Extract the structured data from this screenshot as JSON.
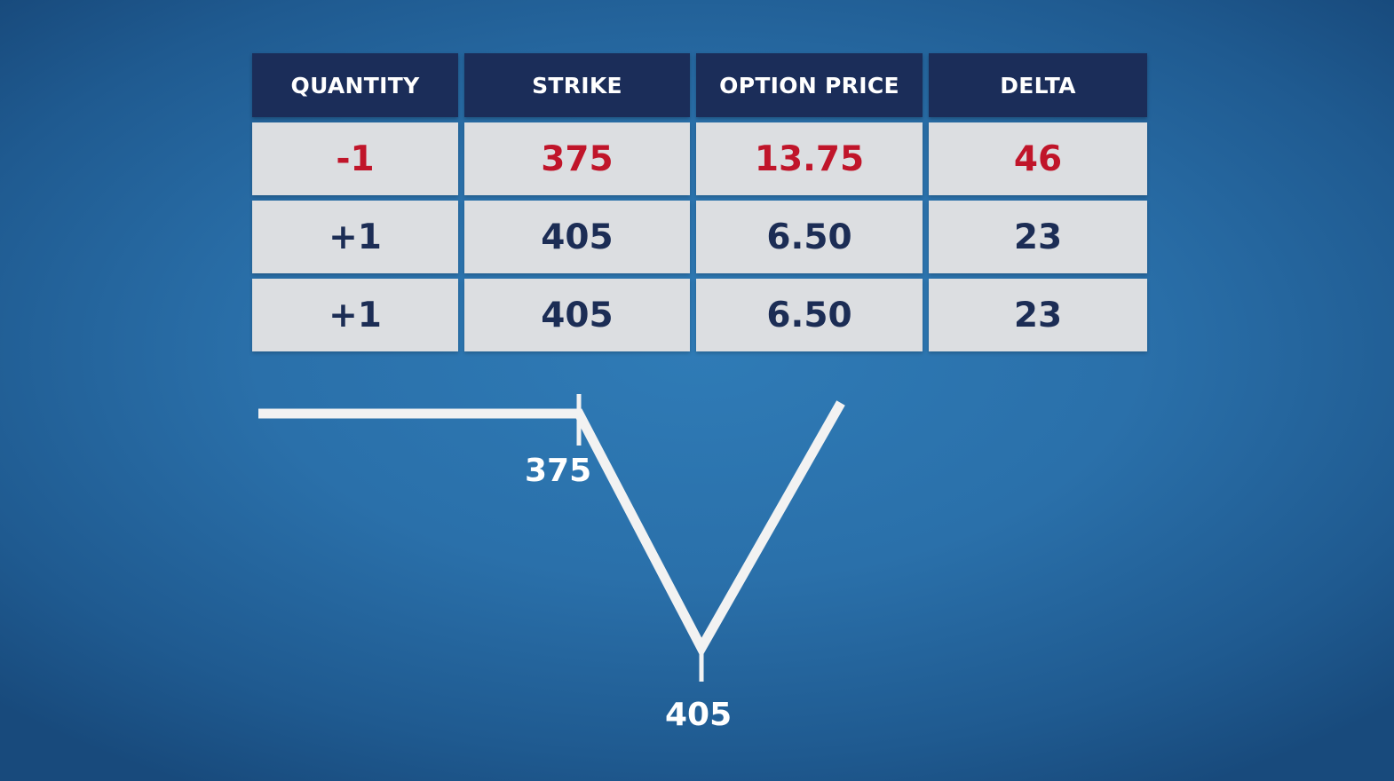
{
  "table": {
    "headers": [
      "QUANTITY",
      "STRIKE",
      "OPTION PRICE",
      "DELTA"
    ],
    "rows": [
      [
        "-1",
        "375",
        "13.75",
        "46"
      ],
      [
        "+1",
        "405",
        "6.50",
        "23"
      ],
      [
        "+1",
        "405",
        "6.50",
        "23"
      ]
    ],
    "highlight_color": "#c0152a",
    "text_color": "#1c2d55",
    "header_bg": "#1b2d59"
  },
  "diagram": {
    "strike_low_label": "375",
    "strike_high_label": "405",
    "line_color": "#f2f2f2"
  }
}
